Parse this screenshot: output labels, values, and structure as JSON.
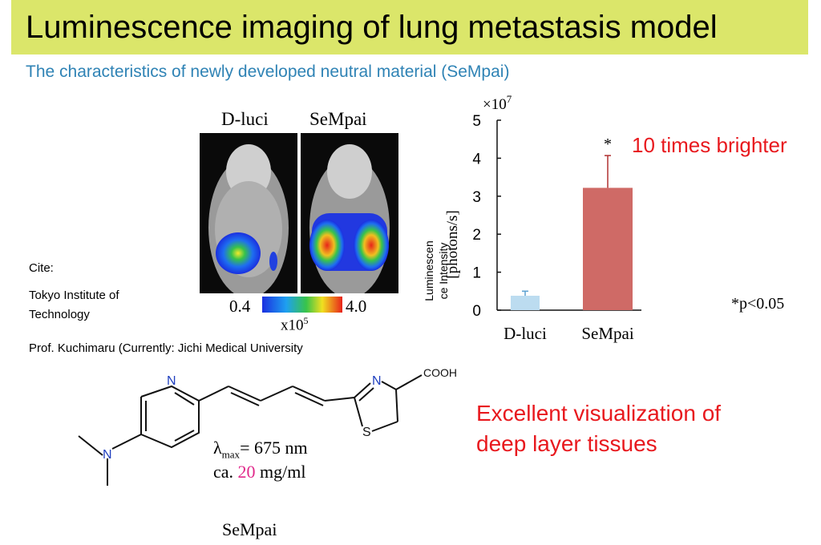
{
  "slide": {
    "title": "Luminescence imaging of lung metastasis model",
    "subtitle": "The characteristics of newly developed neutral material (SeMpai)"
  },
  "imaging": {
    "label_left": "D-luci",
    "label_right": "SeMpai",
    "colorbar_min": "0.4",
    "colorbar_max": "4.0",
    "colorbar_scale_base": "x10",
    "colorbar_scale_exp": "5"
  },
  "chart_data": {
    "type": "bar",
    "categories": [
      "D-luci",
      "SeMpai"
    ],
    "values": [
      0.38,
      3.22
    ],
    "errors": [
      0.12,
      0.85
    ],
    "ylim": [
      0,
      5
    ],
    "yticks": [
      "0",
      "1",
      "2",
      "3",
      "4",
      "5"
    ],
    "y_multiplier_base": "×10",
    "y_multiplier_exp": "7",
    "ylabel_unit": "[photons/s]",
    "ylabel_line1": "Luminescen",
    "ylabel_line2": "ce Intensity",
    "significance_marker": "*",
    "bar_colors": [
      "#bcdcf0",
      "#cf6a66"
    ]
  },
  "annotations": {
    "brighter": "10 times brighter",
    "p_value": "*p<0.05",
    "visualization_line1": "Excellent visualization of",
    "visualization_line2": "deep layer tissues"
  },
  "cite": {
    "label": "Cite:",
    "institution_line1": "Tokyo Institute of",
    "institution_line2": "Technology",
    "professor": "Prof. Kuchimaru (Currently: Jichi Medical University"
  },
  "molecule": {
    "atom_n_ring": "N",
    "atom_n_amine": "N",
    "atom_n_thiazoline": "N",
    "atom_s": "S",
    "group_cooh": "COOH",
    "lambda_symbol": "λ",
    "lambda_sub": "max",
    "lambda_value": "= 675 nm",
    "conc_prefix": "ca. ",
    "conc_value": "20",
    "conc_unit": " mg/ml",
    "conc_color": "#e0288a",
    "name": "SeMpai"
  }
}
